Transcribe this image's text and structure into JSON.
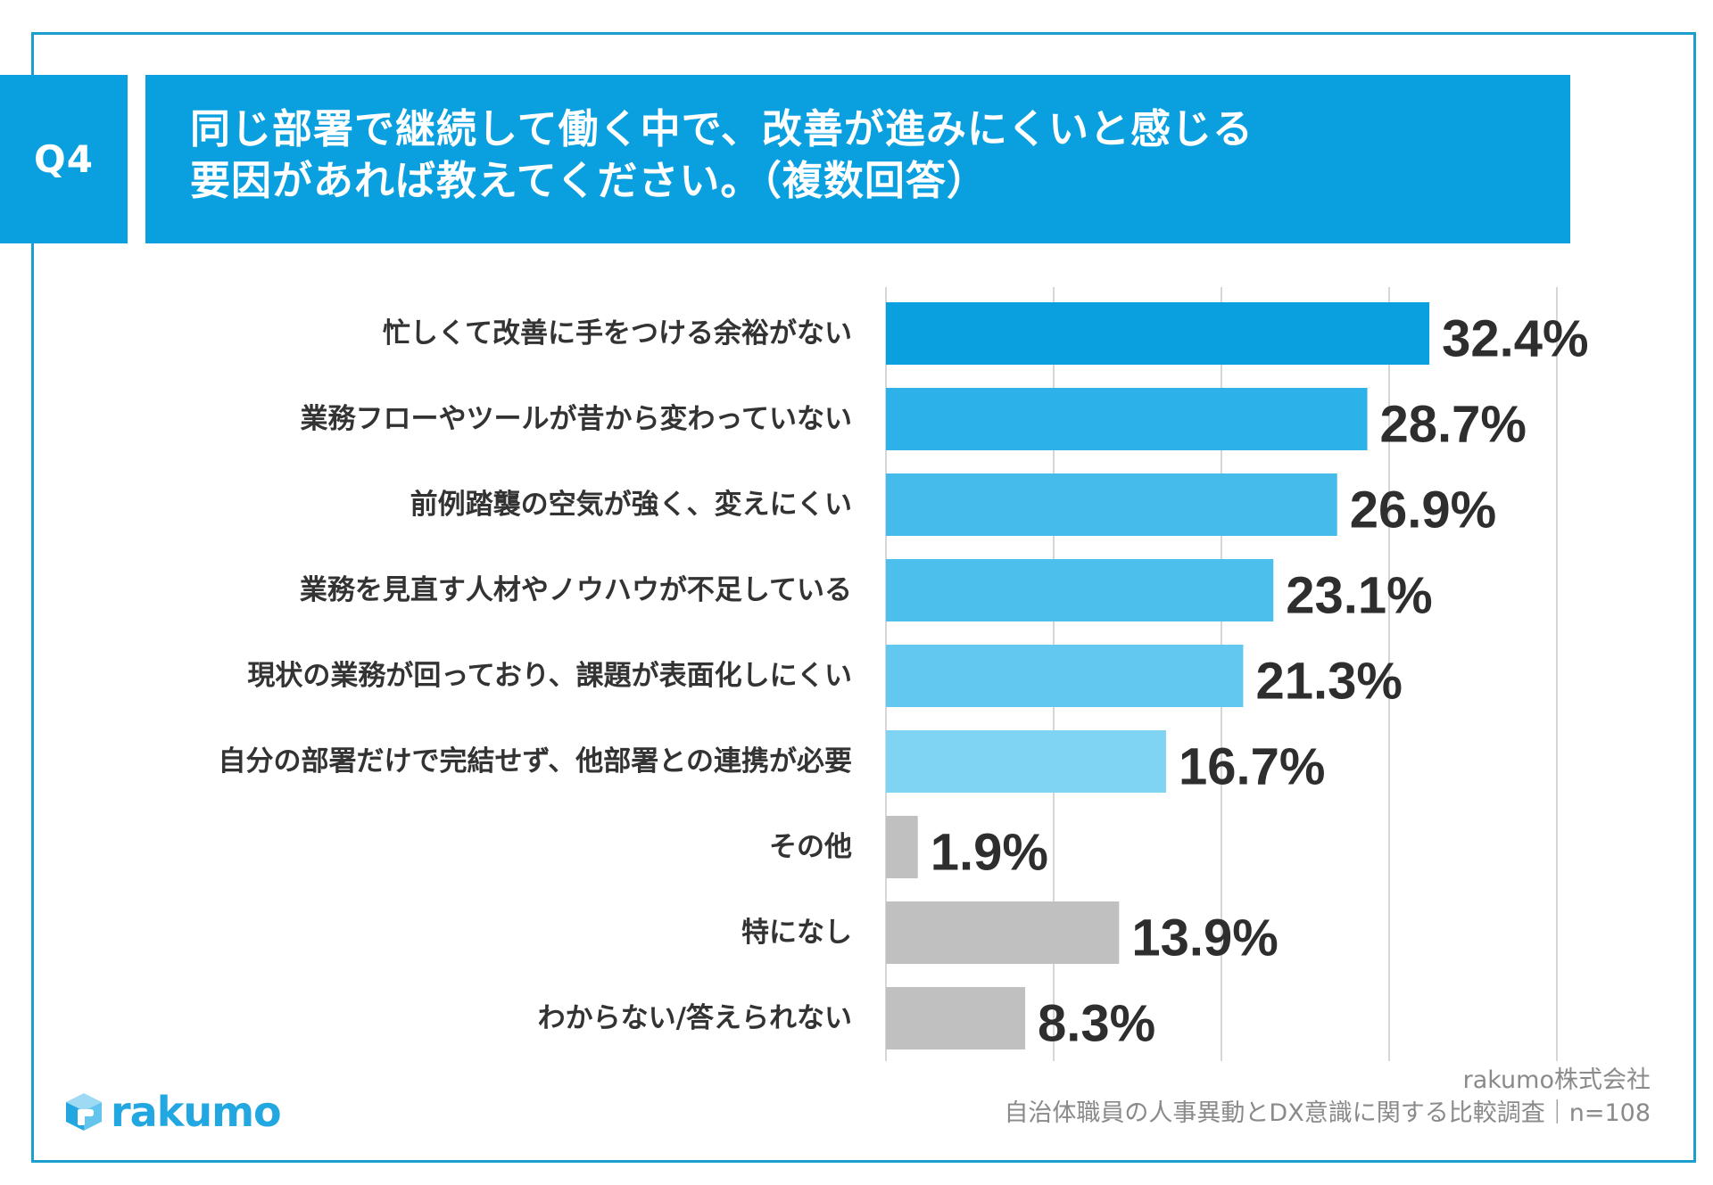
{
  "question": {
    "badge": "Q4",
    "title_line1": "同じ部署で継続して働く中で、改善が進みにくいと感じる",
    "title_line2": "要因があれば教えてください。（複数回答）"
  },
  "colors": {
    "frame": "#1a9fcf",
    "header": "#0aa0e0",
    "bar_shades": [
      "#0aa0e0",
      "#2cb1e8",
      "#45bbeb",
      "#4dbfec",
      "#63c8ef",
      "#7fd3f3"
    ],
    "bar_gray": "#c0c0c0",
    "grid": "#d6d6d6",
    "label_text": "#333333",
    "value_text": "#2e2e2e"
  },
  "chart_data": {
    "type": "bar",
    "orientation": "horizontal",
    "categories": [
      "忙しくて改善に手をつける余裕がない",
      "業務フローやツールが昔から変わっていない",
      "前例踏襲の空気が強く、変えにくい",
      "業務を見直す人材やノウハウが不足している",
      "現状の業務が回っており、課題が表面化しにくい",
      "自分の部署だけで完結せず、他部署との連携が必要",
      "その他",
      "特になし",
      "わからない/答えられない"
    ],
    "values": [
      32.4,
      28.7,
      26.9,
      23.1,
      21.3,
      16.7,
      1.9,
      13.9,
      8.3
    ],
    "value_labels": [
      "32.4%",
      "28.7%",
      "26.9%",
      "23.1%",
      "21.3%",
      "16.7%",
      "1.9%",
      "13.9%",
      "8.3%"
    ],
    "unit": "%",
    "xlim": [
      0,
      40
    ],
    "grid_interval": 10,
    "title": "同じ部署で継続して働く中で、改善が進みにくいと感じる要因があれば教えてください。（複数回答）",
    "xlabel": "",
    "ylabel": ""
  },
  "footer": {
    "company": "rakumo株式会社",
    "survey": "自治体職員の人事異動とDX意識に関する比較調査｜n=108"
  },
  "logo": {
    "text": "rakumo",
    "icon": "cube-icon"
  }
}
